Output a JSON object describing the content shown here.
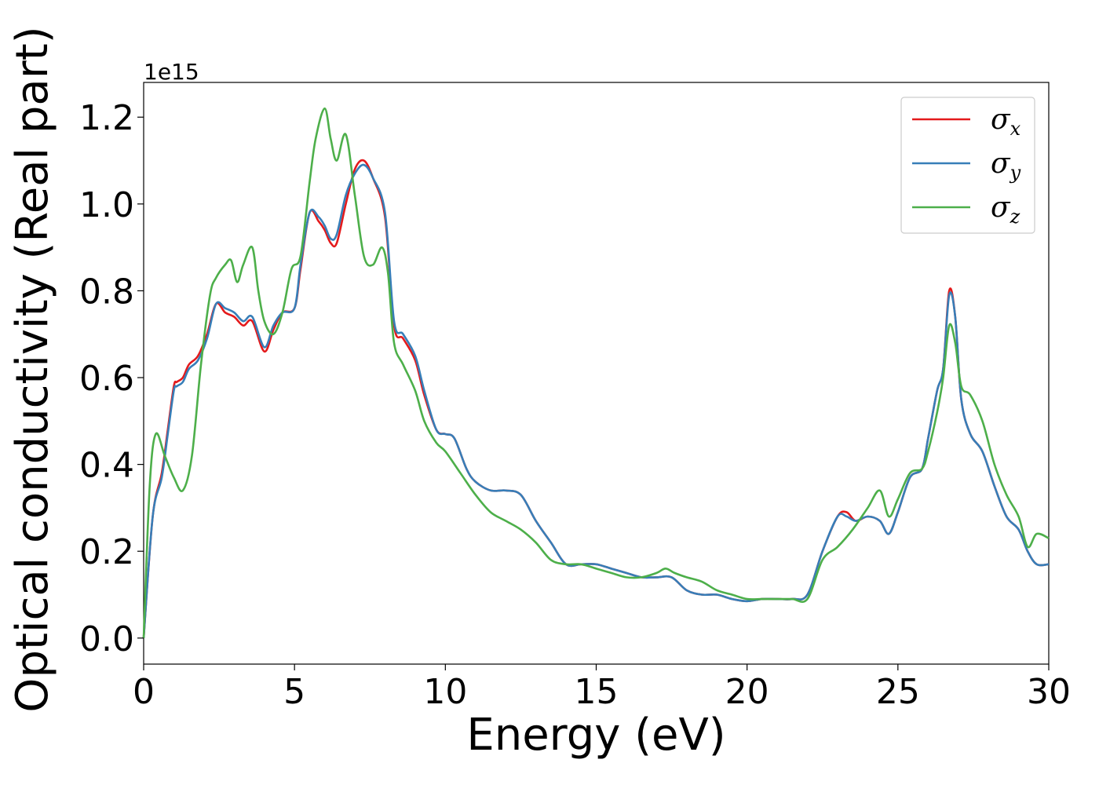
{
  "chart_data": {
    "type": "line",
    "xlabel": "Energy (eV)",
    "ylabel": "Optical conductivity (Real part)",
    "y_offset_label": "1e15",
    "xlim": [
      0,
      30
    ],
    "ylim": [
      -0.06,
      1.28
    ],
    "y_scale_factor": 1000000000000000.0,
    "x_ticks": [
      0,
      5,
      10,
      15,
      20,
      25,
      30
    ],
    "x_tick_labels": [
      "0",
      "5",
      "10",
      "15",
      "20",
      "25",
      "30"
    ],
    "y_ticks": [
      0.0,
      0.2,
      0.4,
      0.6,
      0.8,
      1.0,
      1.2
    ],
    "y_tick_labels": [
      "0.0",
      "0.2",
      "0.4",
      "0.6",
      "0.8",
      "1.0",
      "1.2"
    ],
    "grid": false,
    "legend_position": "top-right",
    "series": [
      {
        "name": "σx",
        "legend_symbol": "σ",
        "legend_subscript": "x",
        "color": "#e41a1c",
        "x": [
          0,
          0.3,
          0.6,
          0.8,
          1.0,
          1.1,
          1.3,
          1.5,
          1.8,
          2.1,
          2.4,
          2.7,
          3.0,
          3.3,
          3.6,
          4.0,
          4.3,
          4.6,
          5.0,
          5.2,
          5.5,
          5.8,
          6.0,
          6.2,
          6.4,
          6.7,
          7.0,
          7.3,
          7.6,
          8.0,
          8.3,
          8.6,
          9.0,
          9.3,
          9.7,
          10.0,
          10.3,
          10.7,
          11.0,
          11.5,
          12.0,
          12.5,
          13.0,
          13.5,
          14.0,
          14.5,
          15.0,
          15.5,
          16.0,
          16.5,
          17.0,
          17.5,
          18.0,
          18.5,
          19.0,
          19.5,
          20.0,
          20.5,
          21.0,
          21.5,
          22.0,
          22.5,
          23.0,
          23.3,
          23.6,
          24.0,
          24.4,
          24.7,
          25.0,
          25.4,
          25.8,
          26.0,
          26.3,
          26.5,
          26.7,
          26.9,
          27.1,
          27.4,
          27.8,
          28.2,
          28.6,
          29.0,
          29.3,
          29.6,
          30.0
        ],
        "y": [
          0.0,
          0.28,
          0.38,
          0.48,
          0.58,
          0.59,
          0.6,
          0.63,
          0.65,
          0.7,
          0.77,
          0.75,
          0.74,
          0.72,
          0.73,
          0.66,
          0.71,
          0.75,
          0.76,
          0.85,
          0.98,
          0.96,
          0.94,
          0.91,
          0.91,
          1.0,
          1.08,
          1.1,
          1.06,
          0.97,
          0.72,
          0.69,
          0.64,
          0.56,
          0.48,
          0.47,
          0.46,
          0.39,
          0.36,
          0.34,
          0.34,
          0.33,
          0.27,
          0.22,
          0.17,
          0.17,
          0.17,
          0.16,
          0.15,
          0.14,
          0.14,
          0.14,
          0.11,
          0.1,
          0.1,
          0.09,
          0.085,
          0.09,
          0.09,
          0.09,
          0.1,
          0.2,
          0.28,
          0.29,
          0.27,
          0.28,
          0.27,
          0.24,
          0.29,
          0.37,
          0.39,
          0.46,
          0.57,
          0.62,
          0.8,
          0.74,
          0.55,
          0.47,
          0.43,
          0.35,
          0.28,
          0.25,
          0.2,
          0.17,
          0.17
        ]
      },
      {
        "name": "σy",
        "legend_symbol": "σ",
        "legend_subscript": "y",
        "color": "#377eb8",
        "x": [
          0,
          0.3,
          0.6,
          0.8,
          1.0,
          1.1,
          1.3,
          1.5,
          1.8,
          2.1,
          2.4,
          2.7,
          3.0,
          3.3,
          3.6,
          4.0,
          4.3,
          4.6,
          5.0,
          5.2,
          5.5,
          5.8,
          6.0,
          6.2,
          6.4,
          6.7,
          7.0,
          7.3,
          7.6,
          8.0,
          8.3,
          8.6,
          9.0,
          9.3,
          9.7,
          10.0,
          10.3,
          10.7,
          11.0,
          11.5,
          12.0,
          12.5,
          13.0,
          13.5,
          14.0,
          14.5,
          15.0,
          15.5,
          16.0,
          16.5,
          17.0,
          17.5,
          18.0,
          18.5,
          19.0,
          19.5,
          20.0,
          20.5,
          21.0,
          21.5,
          22.0,
          22.5,
          23.0,
          23.3,
          23.6,
          24.0,
          24.4,
          24.7,
          25.0,
          25.4,
          25.8,
          26.0,
          26.3,
          26.5,
          26.7,
          26.9,
          27.1,
          27.4,
          27.8,
          28.2,
          28.6,
          29.0,
          29.3,
          29.6,
          30.0
        ],
        "y": [
          0.0,
          0.28,
          0.37,
          0.47,
          0.57,
          0.58,
          0.59,
          0.62,
          0.64,
          0.69,
          0.77,
          0.76,
          0.75,
          0.73,
          0.74,
          0.67,
          0.72,
          0.75,
          0.76,
          0.86,
          0.98,
          0.97,
          0.95,
          0.92,
          0.93,
          1.02,
          1.07,
          1.09,
          1.06,
          0.98,
          0.73,
          0.7,
          0.65,
          0.57,
          0.48,
          0.47,
          0.46,
          0.39,
          0.36,
          0.34,
          0.34,
          0.33,
          0.27,
          0.22,
          0.17,
          0.17,
          0.17,
          0.16,
          0.15,
          0.14,
          0.14,
          0.14,
          0.11,
          0.1,
          0.1,
          0.09,
          0.085,
          0.09,
          0.09,
          0.09,
          0.1,
          0.2,
          0.28,
          0.28,
          0.27,
          0.28,
          0.27,
          0.24,
          0.29,
          0.37,
          0.39,
          0.46,
          0.57,
          0.62,
          0.79,
          0.74,
          0.55,
          0.47,
          0.43,
          0.35,
          0.28,
          0.25,
          0.2,
          0.17,
          0.17
        ]
      },
      {
        "name": "σz",
        "legend_symbol": "σ",
        "legend_subscript": "z",
        "color": "#4daf4a",
        "x": [
          0,
          0.2,
          0.4,
          0.7,
          1.0,
          1.3,
          1.6,
          1.9,
          2.2,
          2.4,
          2.7,
          2.9,
          3.1,
          3.3,
          3.6,
          3.8,
          4.0,
          4.3,
          4.6,
          4.9,
          5.2,
          5.5,
          5.7,
          6.0,
          6.2,
          6.4,
          6.7,
          7.0,
          7.3,
          7.6,
          7.9,
          8.1,
          8.3,
          8.6,
          9.0,
          9.3,
          9.7,
          10.0,
          10.5,
          11.0,
          11.5,
          12.0,
          12.5,
          13.0,
          13.5,
          14.0,
          14.5,
          15.0,
          15.5,
          16.0,
          16.5,
          17.0,
          17.3,
          17.6,
          18.0,
          18.5,
          19.0,
          19.5,
          20.0,
          20.5,
          21.0,
          21.5,
          22.0,
          22.5,
          23.0,
          23.5,
          24.0,
          24.4,
          24.7,
          25.0,
          25.4,
          25.8,
          26.0,
          26.3,
          26.5,
          26.7,
          26.9,
          27.1,
          27.4,
          27.8,
          28.2,
          28.6,
          29.0,
          29.3,
          29.6,
          30.0
        ],
        "y": [
          0.0,
          0.35,
          0.47,
          0.42,
          0.37,
          0.34,
          0.42,
          0.63,
          0.79,
          0.83,
          0.86,
          0.87,
          0.82,
          0.86,
          0.9,
          0.8,
          0.73,
          0.7,
          0.75,
          0.85,
          0.88,
          1.05,
          1.15,
          1.22,
          1.15,
          1.1,
          1.16,
          1.02,
          0.88,
          0.86,
          0.9,
          0.84,
          0.68,
          0.63,
          0.57,
          0.5,
          0.45,
          0.43,
          0.38,
          0.33,
          0.29,
          0.27,
          0.25,
          0.22,
          0.18,
          0.17,
          0.17,
          0.16,
          0.15,
          0.14,
          0.14,
          0.15,
          0.16,
          0.15,
          0.14,
          0.13,
          0.11,
          0.1,
          0.09,
          0.09,
          0.09,
          0.09,
          0.09,
          0.18,
          0.21,
          0.25,
          0.3,
          0.34,
          0.28,
          0.32,
          0.38,
          0.39,
          0.43,
          0.52,
          0.6,
          0.72,
          0.68,
          0.58,
          0.56,
          0.5,
          0.4,
          0.33,
          0.28,
          0.21,
          0.24,
          0.23
        ]
      }
    ]
  }
}
